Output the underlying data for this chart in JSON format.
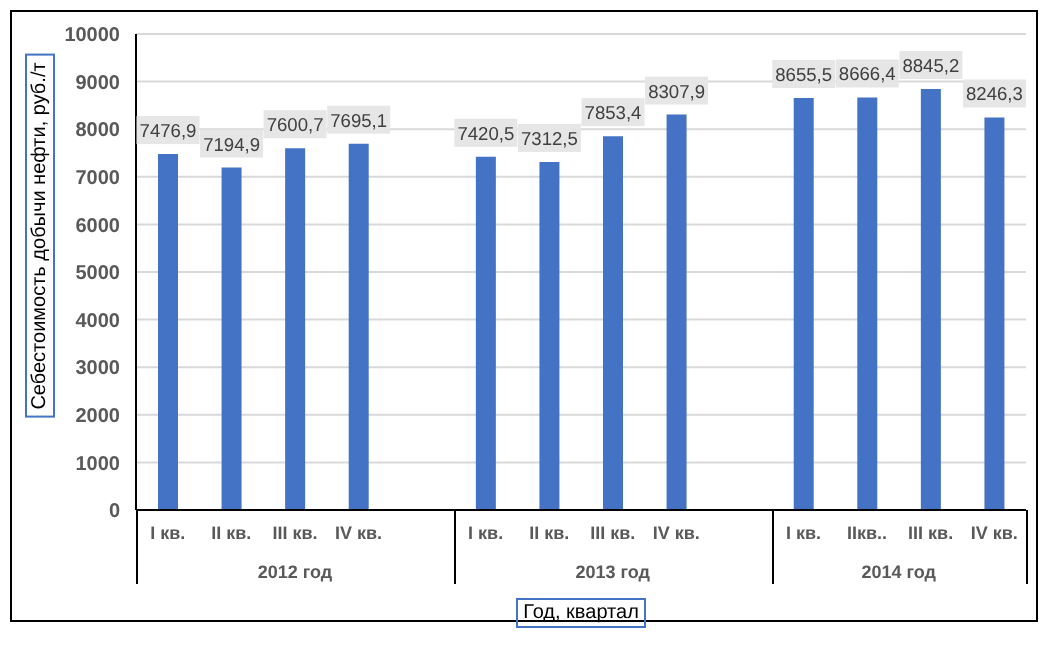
{
  "chart_data": {
    "type": "bar",
    "ylabel": "Себестоимость добычи нефти, руб./т",
    "xlabel": "Год, квартал",
    "categories": [
      "I кв.",
      "II кв.",
      "III кв.",
      "IV кв.",
      null,
      "I кв.",
      "II кв.",
      "III кв.",
      "IV кв.",
      null,
      "I кв.",
      "IIкв..",
      "III кв.",
      "IV кв."
    ],
    "values": [
      7476.9,
      7194.9,
      7600.7,
      7695.1,
      null,
      7420.5,
      7312.5,
      7853.4,
      8307.9,
      null,
      8655.5,
      8666.4,
      8845.2,
      8246.3
    ],
    "value_labels": [
      "7476,9",
      "7194,9",
      "7600,7",
      "7695,1",
      null,
      "7420,5",
      "7312,5",
      "7853,4",
      "8307,9",
      null,
      "8655,5",
      "8666,4",
      "8845,2",
      "8246,3"
    ],
    "color": "#4472c4",
    "ylim": [
      0,
      10000
    ],
    "yticks": [
      0,
      1000,
      2000,
      3000,
      4000,
      5000,
      6000,
      7000,
      8000,
      9000,
      10000
    ],
    "grid": "y",
    "annotations": [
      "2012 год",
      "2013 год",
      "2014 год"
    ]
  }
}
